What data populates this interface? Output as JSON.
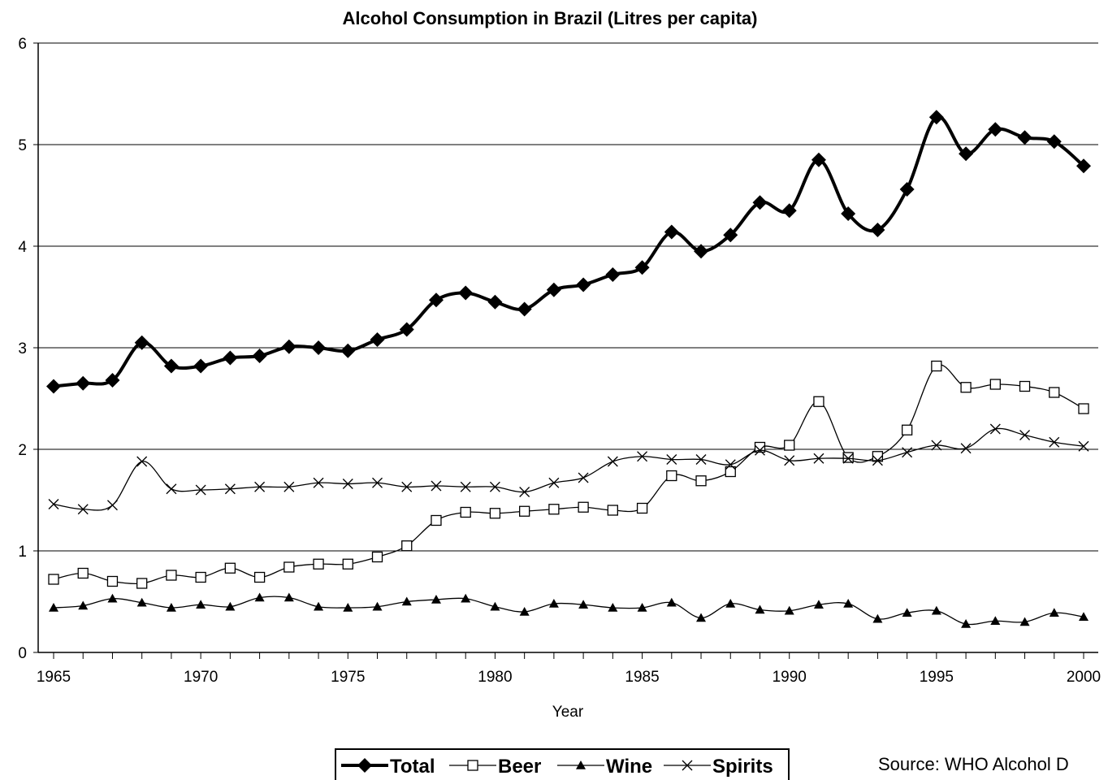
{
  "chart_data": {
    "type": "line",
    "title": "Alcohol Consumption in Brazil (Litres per capita)",
    "xlabel": "Year",
    "ylabel": "",
    "x": [
      1965,
      1966,
      1967,
      1968,
      1969,
      1970,
      1971,
      1972,
      1973,
      1974,
      1975,
      1976,
      1977,
      1978,
      1979,
      1980,
      1981,
      1982,
      1983,
      1984,
      1985,
      1986,
      1987,
      1988,
      1989,
      1990,
      1991,
      1992,
      1993,
      1994,
      1995,
      1996,
      1997,
      1998,
      1999,
      2000
    ],
    "xlim": [
      1965,
      2000
    ],
    "ylim": [
      0,
      6
    ],
    "x_ticks": [
      "1965",
      "1970",
      "1975",
      "1980",
      "1985",
      "1990",
      "1995",
      "2000"
    ],
    "y_ticks": [
      "0",
      "1",
      "2",
      "3",
      "4",
      "5",
      "6"
    ],
    "grid": "horizontal",
    "legend_position": "bottom",
    "series": [
      {
        "name": "Total",
        "marker": "diamond-filled",
        "color": "#000000",
        "bold": true,
        "values": [
          2.62,
          2.65,
          2.68,
          3.05,
          2.82,
          2.82,
          2.9,
          2.92,
          3.01,
          3.0,
          2.97,
          3.08,
          3.18,
          3.47,
          3.54,
          3.45,
          3.38,
          3.57,
          3.62,
          3.72,
          3.79,
          4.14,
          3.95,
          4.11,
          4.43,
          4.35,
          4.85,
          4.32,
          4.16,
          4.56,
          5.27,
          4.91,
          5.15,
          5.07,
          5.03,
          4.79
        ]
      },
      {
        "name": "Beer",
        "marker": "square-open",
        "color": "#000000",
        "values": [
          0.72,
          0.78,
          0.7,
          0.68,
          0.76,
          0.74,
          0.83,
          0.74,
          0.84,
          0.87,
          0.87,
          0.94,
          1.05,
          1.3,
          1.38,
          1.37,
          1.39,
          1.41,
          1.43,
          1.4,
          1.42,
          1.74,
          1.69,
          1.78,
          2.02,
          2.04,
          2.47,
          1.92,
          1.93,
          2.19,
          2.82,
          2.61,
          2.64,
          2.62,
          2.56,
          2.4
        ]
      },
      {
        "name": "Wine",
        "marker": "triangle-filled",
        "color": "#000000",
        "values": [
          0.44,
          0.46,
          0.53,
          0.49,
          0.44,
          0.47,
          0.45,
          0.54,
          0.54,
          0.45,
          0.44,
          0.45,
          0.5,
          0.52,
          0.53,
          0.45,
          0.4,
          0.48,
          0.47,
          0.44,
          0.44,
          0.49,
          0.34,
          0.48,
          0.42,
          0.41,
          0.47,
          0.48,
          0.33,
          0.39,
          0.41,
          0.28,
          0.31,
          0.3,
          0.39,
          0.35
        ]
      },
      {
        "name": "Spirits",
        "marker": "x",
        "color": "#000000",
        "values": [
          1.46,
          1.41,
          1.45,
          1.88,
          1.61,
          1.6,
          1.61,
          1.63,
          1.63,
          1.67,
          1.66,
          1.67,
          1.63,
          1.64,
          1.63,
          1.63,
          1.58,
          1.67,
          1.72,
          1.88,
          1.93,
          1.9,
          1.9,
          1.85,
          1.99,
          1.89,
          1.91,
          1.91,
          1.89,
          1.97,
          2.04,
          2.01,
          2.2,
          2.14,
          2.07,
          2.03
        ]
      }
    ]
  },
  "source_text": "Source: WHO Alcohol D"
}
